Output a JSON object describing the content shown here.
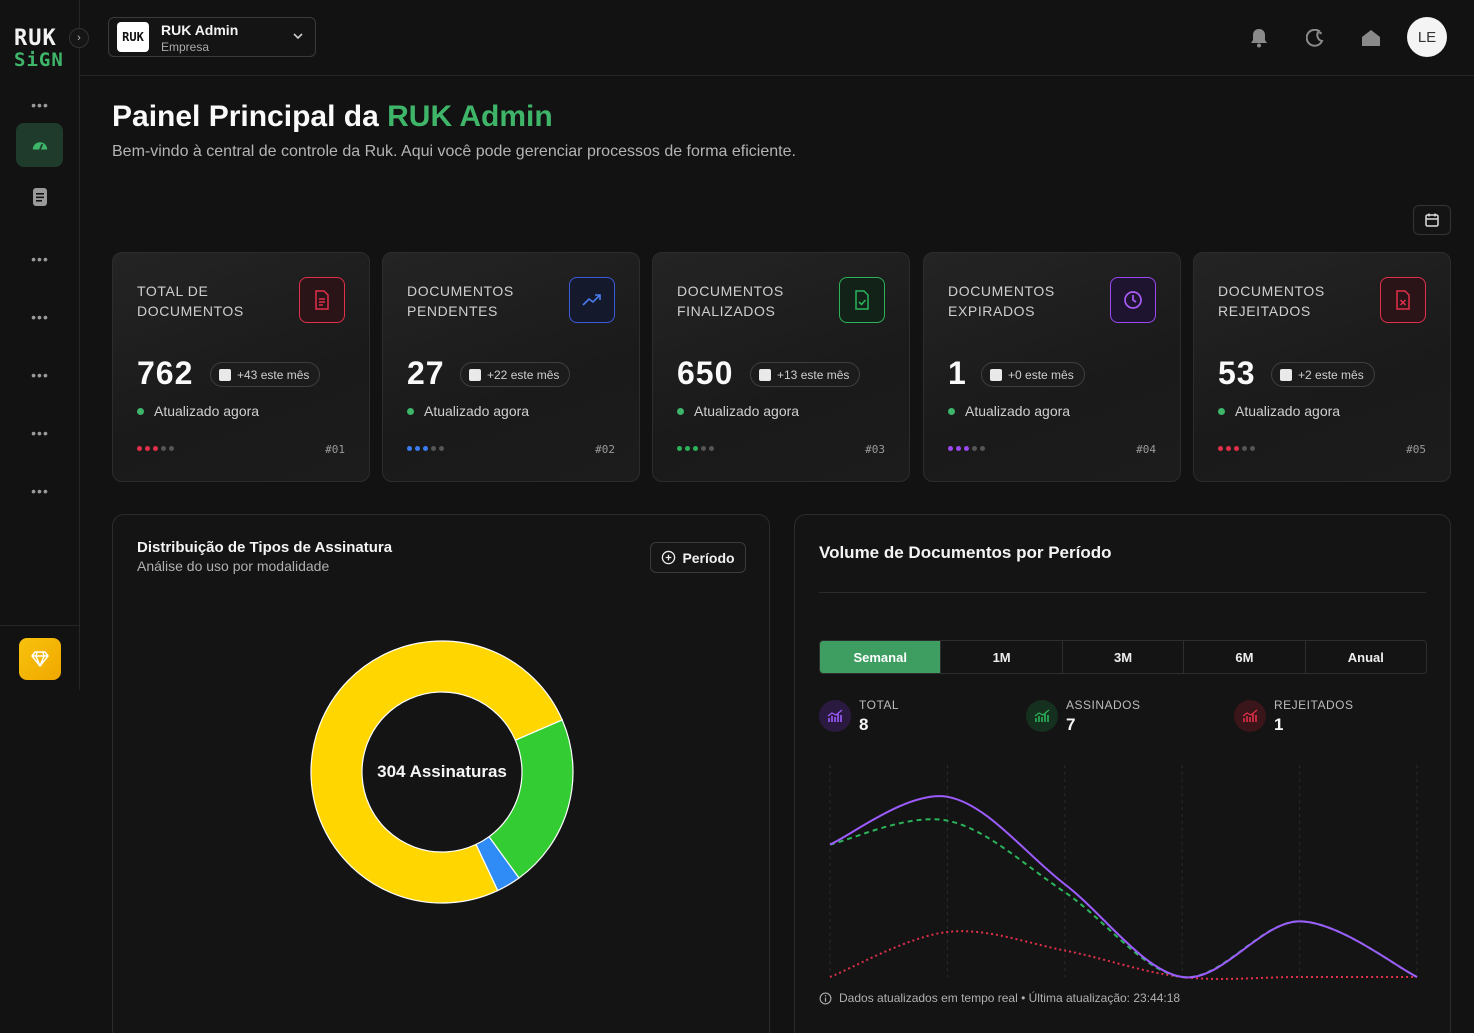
{
  "brand": {
    "logo_top": "RUK",
    "logo_bottom": "SiGN"
  },
  "sidebar": {
    "collapse_icon": "chevron-right-icon",
    "dots": "•••",
    "items": [
      {
        "icon": "dashboard-gauge-icon",
        "active": true
      },
      {
        "icon": "document-icon",
        "active": false
      }
    ]
  },
  "header": {
    "company_logo": "RUK",
    "company_name": "RUK Admin",
    "company_type": "Empresa",
    "icons": [
      "bell-icon",
      "moon-icon",
      "home-icon"
    ],
    "avatar_initials": "LE"
  },
  "page": {
    "title_prefix": "Painel Principal da ",
    "title_accent": "RUK Admin",
    "subtitle": "Bem-vindo à central de controle da Ruk. Aqui você pode gerenciar processos de forma eficiente."
  },
  "stats": [
    {
      "label": "TOTAL DE DOCUMENTOS",
      "value": "762",
      "delta": "+43 este mês",
      "updated": "Atualizado agora",
      "number": "#01",
      "color": "#e0304a",
      "icon": "document-icon"
    },
    {
      "label": "DOCUMENTOS PENDENTES",
      "value": "27",
      "delta": "+22 este mês",
      "updated": "Atualizado agora",
      "number": "#02",
      "color": "#3b7bf0",
      "icon": "trending-up-icon"
    },
    {
      "label": "DOCUMENTOS FINALIZADOS",
      "value": "650",
      "delta": "+13 este mês",
      "updated": "Atualizado agora",
      "number": "#03",
      "color": "#2bb35a",
      "icon": "document-check-icon"
    },
    {
      "label": "DOCUMENTOS EXPIRADOS",
      "value": "1",
      "delta": "+0 este mês",
      "updated": "Atualizado agora",
      "number": "#04",
      "color": "#9d47f0",
      "icon": "clock-icon"
    },
    {
      "label": "DOCUMENTOS REJEITADOS",
      "value": "53",
      "delta": "+2 este mês",
      "updated": "Atualizado agora",
      "number": "#05",
      "color": "#e0304a",
      "icon": "document-x-icon"
    }
  ],
  "signature_panel": {
    "title": "Distribuição de Tipos de Assinatura",
    "subtitle": "Análise do uso por modalidade",
    "period_button": "Período",
    "center_label": "304 Assinaturas"
  },
  "volume_panel": {
    "title": "Volume de Documentos por Período",
    "tabs": [
      "Semanal",
      "1M",
      "3M",
      "6M",
      "Anual"
    ],
    "active_tab": "Semanal",
    "metrics": [
      {
        "label": "TOTAL",
        "value": "8",
        "color": "#9d5cff"
      },
      {
        "label": "ASSINADOS",
        "value": "7",
        "color": "#2bb35a"
      },
      {
        "label": "REJEITADOS",
        "value": "1",
        "color": "#e0304a"
      }
    ],
    "footnote": "Dados atualizados em tempo real • Última atualização: 23:44:18"
  },
  "chart_data": [
    {
      "type": "pie",
      "title": "Distribuição de Tipos de Assinatura",
      "center_label": "304 Assinaturas",
      "slices": [
        {
          "value": 0.755,
          "color": "#ffd600"
        },
        {
          "value": 0.215,
          "color": "#33cc33"
        },
        {
          "value": 0.03,
          "color": "#2f8cf6"
        }
      ]
    },
    {
      "type": "line",
      "title": "Volume de Documentos por Período",
      "x": [
        0,
        1,
        2,
        3,
        4,
        5
      ],
      "ylim": [
        0,
        8
      ],
      "series": [
        {
          "name": "TOTAL",
          "values": [
            5,
            6.8,
            3.5,
            0,
            2.1,
            0
          ],
          "color": "#9d5cff",
          "dash": "solid"
        },
        {
          "name": "ASSINADOS",
          "values": [
            5,
            5.9,
            3.2,
            0,
            2.1,
            0
          ],
          "color": "#2bb35a",
          "dash": "dashed"
        },
        {
          "name": "REJEITADOS",
          "values": [
            0,
            1.7,
            1.0,
            0,
            0,
            0
          ],
          "color": "#e0304a",
          "dash": "dotted"
        }
      ]
    }
  ]
}
